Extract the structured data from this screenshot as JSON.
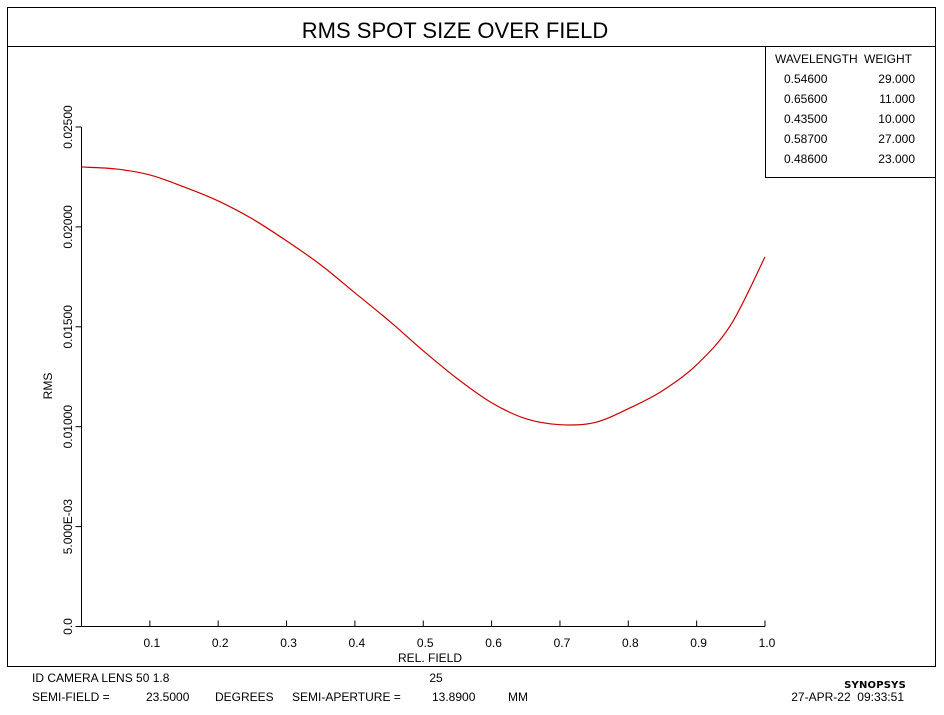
{
  "chart_data": {
    "type": "line",
    "title": "RMS SPOT SIZE OVER FIELD",
    "xlabel": "REL. FIELD",
    "ylabel": "RMS",
    "xlim": [
      0,
      1.0
    ],
    "ylim": [
      0,
      0.025
    ],
    "x_ticks": [
      0.1,
      0.2,
      0.3,
      0.4,
      0.5,
      0.6,
      0.7,
      0.8,
      0.9,
      1.0
    ],
    "x_tick_labels": [
      "0.1",
      "0.2",
      "0.3",
      "0.4",
      "0.5",
      "0.6",
      "0.7",
      "0.8",
      "0.9",
      "1.0"
    ],
    "y_ticks": [
      0,
      0.005,
      0.01,
      0.015,
      0.02,
      0.025
    ],
    "y_tick_labels": [
      "0.0",
      "5.000E-03",
      "0.01000",
      "0.01500",
      "0.02000",
      "0.02500"
    ],
    "grid": false,
    "legend_placement": "top-right",
    "series": [
      {
        "color": "#cc0000",
        "x": [
          0.0,
          0.05,
          0.1,
          0.15,
          0.2,
          0.25,
          0.3,
          0.35,
          0.4,
          0.45,
          0.5,
          0.55,
          0.6,
          0.65,
          0.7,
          0.75,
          0.8,
          0.85,
          0.9,
          0.95,
          1.0
        ],
        "y": [
          0.023,
          0.0229,
          0.0226,
          0.022,
          0.0213,
          0.0204,
          0.0193,
          0.0181,
          0.0167,
          0.0153,
          0.0138,
          0.0124,
          0.0112,
          0.0104,
          0.0101,
          0.0102,
          0.0109,
          0.0118,
          0.0131,
          0.0151,
          0.0185
        ]
      }
    ]
  },
  "legend": {
    "header_wavelength": "WAVELENGTH",
    "header_weight": "WEIGHT",
    "rows": [
      {
        "wavelength": "0.54600",
        "weight": "29.000"
      },
      {
        "wavelength": "0.65600",
        "weight": "11.000"
      },
      {
        "wavelength": "0.43500",
        "weight": "10.000"
      },
      {
        "wavelength": "0.58700",
        "weight": "27.000"
      },
      {
        "wavelength": "0.48600",
        "weight": "23.000"
      }
    ]
  },
  "footer": {
    "lens_name": "ID CAMERA LENS 50 1.8",
    "lens_number": "25",
    "semi_field_label": "SEMI-FIELD =",
    "semi_field_value": "23.5000",
    "semi_field_unit": "DEGREES",
    "semi_aperture_label": "SEMI-APERTURE =",
    "semi_aperture_value": "13.8900",
    "semi_aperture_unit": "MM",
    "brand": "SYNOPSYS",
    "date_time": "27-APR-22  09:33:51"
  },
  "colors": {
    "curve": "#cc0000",
    "brand": "#0000cc"
  }
}
